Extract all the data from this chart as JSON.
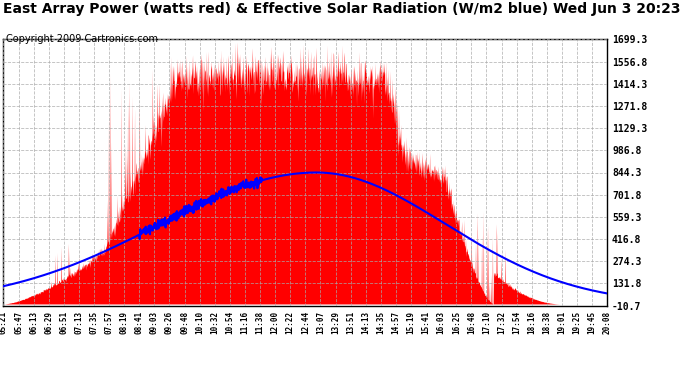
{
  "title": "East Array Power (watts red) & Effective Solar Radiation (W/m2 blue) Wed Jun 3 20:23",
  "copyright": "Copyright 2009 Cartronics.com",
  "ymin": -10.7,
  "ymax": 1699.3,
  "yticks": [
    -10.7,
    131.8,
    274.3,
    416.8,
    559.3,
    701.8,
    844.3,
    986.8,
    1129.3,
    1271.8,
    1414.3,
    1556.8,
    1699.3
  ],
  "bg_color": "#ffffff",
  "grid_color": "#aaaaaa",
  "red_color": "#ff0000",
  "blue_color": "#0000ff",
  "title_fontsize": 10,
  "copyright_fontsize": 7,
  "xtick_labels": [
    "05:21",
    "05:47",
    "06:13",
    "06:29",
    "06:51",
    "07:13",
    "07:35",
    "07:57",
    "08:19",
    "08:41",
    "09:03",
    "09:26",
    "09:48",
    "10:10",
    "10:32",
    "10:54",
    "11:16",
    "11:38",
    "12:00",
    "12:22",
    "12:44",
    "13:07",
    "13:29",
    "13:51",
    "14:13",
    "14:35",
    "14:57",
    "15:19",
    "15:41",
    "16:03",
    "16:25",
    "16:48",
    "17:10",
    "17:32",
    "17:54",
    "18:16",
    "18:38",
    "19:01",
    "19:25",
    "19:45",
    "20:08"
  ]
}
